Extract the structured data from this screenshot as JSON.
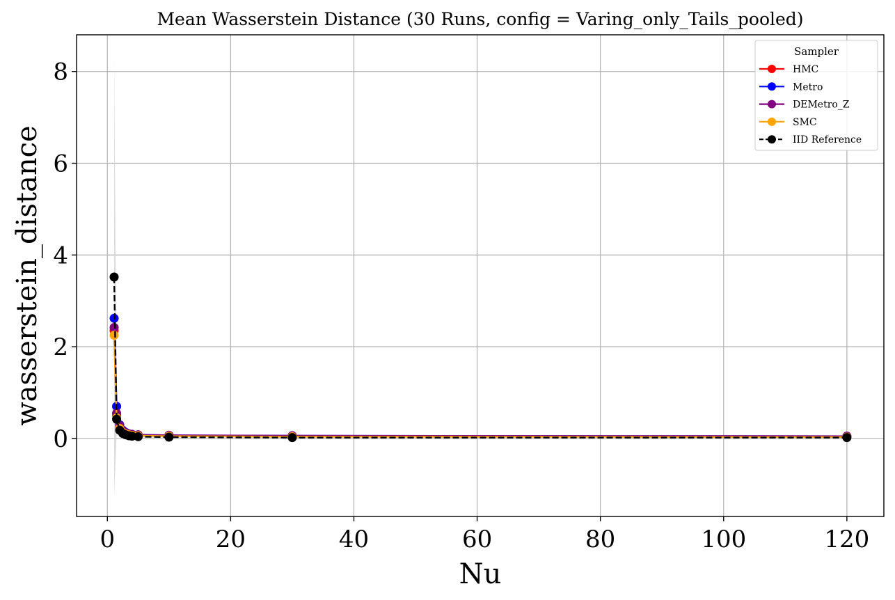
{
  "chart_data": {
    "type": "line",
    "title": "Mean Wasserstein Distance (30 Runs, config = Varing_only_Tails_pooled)",
    "xlabel": "Nu",
    "ylabel": "wasserstein_distance",
    "xlim": [
      -5,
      126
    ],
    "ylim": [
      -1.7,
      8.8
    ],
    "xticks": [
      0,
      20,
      40,
      60,
      80,
      100,
      120
    ],
    "yticks": [
      0,
      2,
      4,
      6,
      8
    ],
    "grid": true,
    "legend_title": "Sampler",
    "legend_placement": "top-right",
    "x": [
      1.1,
      1.5,
      2,
      2.5,
      3,
      3.5,
      4,
      5,
      10,
      30,
      120
    ],
    "series": [
      {
        "name": "HMC",
        "color": "#ff0000",
        "line_style": "solid",
        "values": [
          2.35,
          0.5,
          0.25,
          0.15,
          0.11,
          0.09,
          0.08,
          0.07,
          0.06,
          0.05,
          0.04
        ]
      },
      {
        "name": "Metro",
        "color": "#0000ff",
        "line_style": "solid",
        "values": [
          2.62,
          0.7,
          0.3,
          0.18,
          0.13,
          0.1,
          0.09,
          0.08,
          0.07,
          0.06,
          0.05
        ]
      },
      {
        "name": "DEMetro_Z",
        "color": "#800080",
        "line_style": "solid",
        "values": [
          2.42,
          0.55,
          0.28,
          0.17,
          0.12,
          0.1,
          0.09,
          0.08,
          0.07,
          0.06,
          0.05
        ]
      },
      {
        "name": "SMC",
        "color": "#ffa500",
        "line_style": "solid",
        "values": [
          2.25,
          0.45,
          0.22,
          0.13,
          0.1,
          0.08,
          0.07,
          0.06,
          0.05,
          0.04,
          0.03
        ]
      },
      {
        "name": "IID Reference",
        "color": "#000000",
        "line_style": "dashed",
        "values": [
          3.52,
          0.42,
          0.18,
          0.11,
          0.08,
          0.06,
          0.05,
          0.04,
          0.03,
          0.02,
          0.02
        ],
        "band_lower": [
          -1.25,
          0.1,
          0.08,
          0.05,
          0.04,
          0.03,
          0.03,
          0.02,
          0.02,
          0.01,
          0.01
        ],
        "band_upper": [
          8.3,
          0.75,
          0.3,
          0.18,
          0.12,
          0.09,
          0.08,
          0.06,
          0.05,
          0.03,
          0.03
        ],
        "band_color": "#d3d3d3"
      }
    ]
  }
}
